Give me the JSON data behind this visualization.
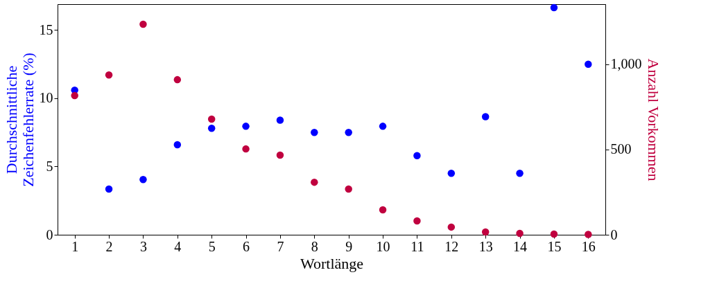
{
  "chart_data": {
    "type": "scatter",
    "xlabel": "Wortlänge",
    "ylabel": "Durchschnittliche\nZeichenfehlerrate (%)",
    "y2label": "Anzahl Vorkommen",
    "x": [
      1,
      2,
      3,
      4,
      5,
      6,
      7,
      8,
      9,
      10,
      11,
      12,
      13,
      14,
      15,
      16
    ],
    "xlim": [
      0.5,
      16.5
    ],
    "xticks": [
      1,
      2,
      3,
      4,
      5,
      6,
      7,
      8,
      9,
      10,
      11,
      12,
      13,
      14,
      15,
      16
    ],
    "ylim": [
      0,
      16.9
    ],
    "yticks": [
      0,
      5,
      10,
      15
    ],
    "y2lim": [
      0,
      1352
    ],
    "y2ticks": [
      0,
      500,
      {
        "value": 1000,
        "label": "1,000"
      }
    ],
    "grid": false,
    "marker": "circle",
    "series": [
      {
        "color": "#0000ff",
        "values": [
          10.6,
          3.35,
          4.05,
          6.6,
          7.8,
          7.95,
          8.4,
          7.5,
          7.5,
          7.95,
          5.8,
          4.5,
          8.65,
          4.5,
          16.65,
          12.5
        ]
      },
      {
        "color": "#c0003f",
        "axis": "y2",
        "values": [
          816,
          937,
          1234,
          909,
          678,
          503,
          467,
          308,
          268,
          146,
          81,
          45,
          16,
          8,
          4,
          2
        ]
      }
    ]
  }
}
